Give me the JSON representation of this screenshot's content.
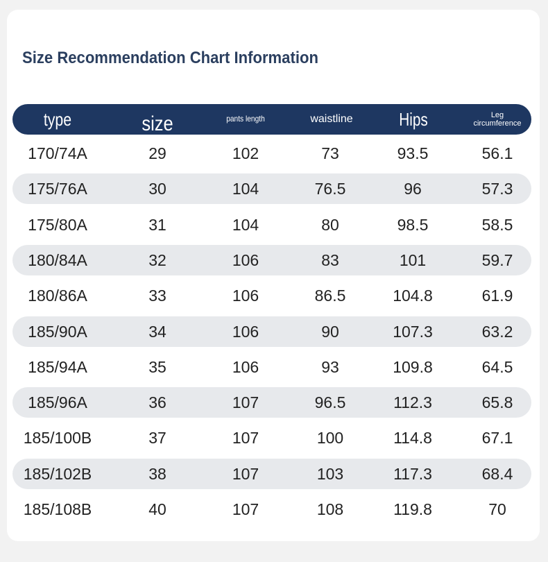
{
  "title": "Size Recommendation Chart Information",
  "columns": [
    "type",
    "size",
    "pants length",
    "waistline",
    "Hips",
    "Leg circumference"
  ],
  "rows": [
    [
      "170/74A",
      "29",
      "102",
      "73",
      "93.5",
      "56.1"
    ],
    [
      "175/76A",
      "30",
      "104",
      "76.5",
      "96",
      "57.3"
    ],
    [
      "175/80A",
      "31",
      "104",
      "80",
      "98.5",
      "58.5"
    ],
    [
      "180/84A",
      "32",
      "106",
      "83",
      "101",
      "59.7"
    ],
    [
      "180/86A",
      "33",
      "106",
      "86.5",
      "104.8",
      "61.9"
    ],
    [
      "185/90A",
      "34",
      "106",
      "90",
      "107.3",
      "63.2"
    ],
    [
      "185/94A",
      "35",
      "106",
      "93",
      "109.8",
      "64.5"
    ],
    [
      "185/96A",
      "36",
      "107",
      "96.5",
      "112.3",
      "65.8"
    ],
    [
      "185/100B",
      "37",
      "107",
      "100",
      "114.8",
      "67.1"
    ],
    [
      "185/102B",
      "38",
      "107",
      "103",
      "117.3",
      "68.4"
    ],
    [
      "185/108B",
      "40",
      "107",
      "108",
      "119.8",
      "70"
    ]
  ],
  "colors": {
    "header_bg": "#1e3761",
    "title": "#2b3f5f",
    "row_shade": "#e7e9ec"
  }
}
